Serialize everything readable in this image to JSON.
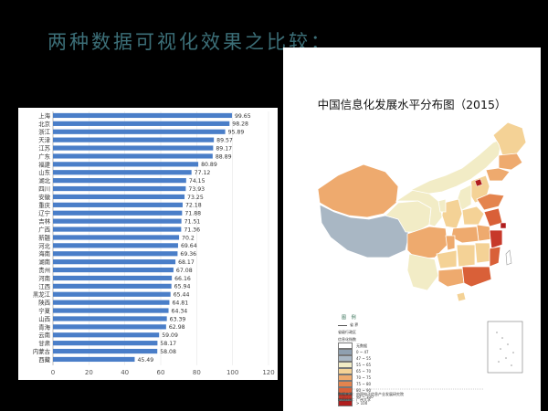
{
  "slide": {
    "title": "两种数据可视化效果之比较："
  },
  "chart_data": {
    "type": "bar",
    "orientation": "horizontal",
    "categories": [
      "上海",
      "北京",
      "浙江",
      "天津",
      "江苏",
      "广东",
      "福建",
      "山东",
      "湖北",
      "四川",
      "安徽",
      "重庆",
      "辽宁",
      "吉林",
      "广西",
      "新疆",
      "河北",
      "海南",
      "湖南",
      "贵州",
      "河南",
      "江西",
      "黑龙江",
      "陕西",
      "宁夏",
      "山西",
      "青海",
      "云南",
      "甘肃",
      "内蒙古",
      "西藏"
    ],
    "values": [
      99.65,
      98.28,
      95.89,
      89.57,
      89.17,
      88.89,
      80.89,
      77.12,
      74.15,
      73.93,
      73.25,
      72.18,
      71.88,
      71.51,
      71.36,
      70.2,
      69.64,
      69.36,
      68.17,
      67.08,
      66.16,
      65.94,
      65.44,
      64.81,
      64.34,
      63.39,
      62.98,
      59.09,
      58.17,
      58.08,
      45.49
    ],
    "value_labels": [
      "99.65",
      "98.28",
      "95.89",
      "89.57",
      "89.17",
      "88.89",
      "80.89",
      "77.12",
      "74.15",
      "73.93",
      "73.25",
      "72.18",
      "71.88",
      "71.51",
      "71.36",
      "70.2",
      "69.64",
      "69.36",
      "68.17",
      "67.08",
      "66.16",
      "65.94",
      "65.44",
      "64.81",
      "64.34",
      "63.39",
      "62.98",
      "59.09",
      "58.17",
      "58.08",
      "45.49"
    ],
    "x_ticks": [
      "0",
      "20",
      "40",
      "60",
      "80",
      "100",
      "120"
    ],
    "xlim": [
      0,
      120
    ],
    "bar_color": "#4a7ec8"
  },
  "map": {
    "title": "中国信息化发展水平分布图（2015）",
    "legend": {
      "heading": "图 例",
      "boundary_label": "省 界",
      "section_label": "省级行政区",
      "index_label": "信息化指数",
      "items": [
        {
          "label": "无数据",
          "color": "#ffffff"
        },
        {
          "label": "0 ~ 47",
          "color": "#8fa0b0"
        },
        {
          "label": "47 ~ 55",
          "color": "#a9b7c4"
        },
        {
          "label": "55 ~ 65",
          "color": "#f2ecc6"
        },
        {
          "label": "65 ~ 70",
          "color": "#f4d296"
        },
        {
          "label": "70 ~ 75",
          "color": "#eeaa6e"
        },
        {
          "label": "75 ~ 80",
          "color": "#e4844e"
        },
        {
          "label": "80 ~ 90",
          "color": "#d96038"
        },
        {
          "label": "90 ~ 100",
          "color": "#c7392a"
        },
        {
          "label": "> 100",
          "color": "#b01e1e"
        }
      ]
    },
    "source_line1": "数据来源：中国电子信息产业发展研究院",
    "source_line2": "地图绘制：广州大学"
  }
}
